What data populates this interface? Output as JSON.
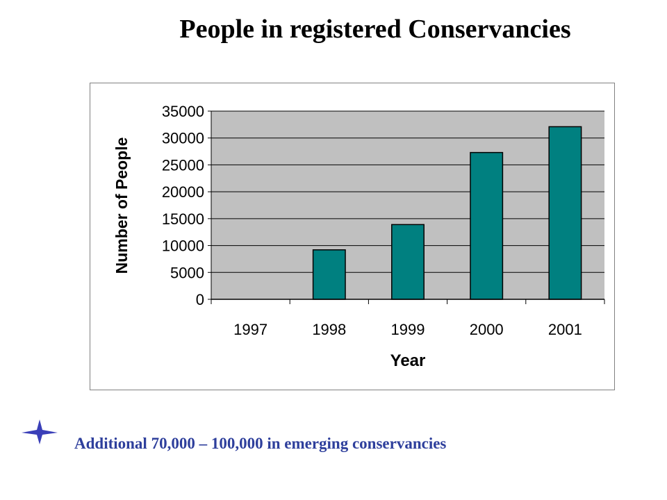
{
  "slide": {
    "title": "People in registered Conservancies",
    "footer_note": "Additional 70,000 – 100,000 in emerging conservancies",
    "bullet_icon": "four-point-star-icon",
    "colors": {
      "bullet": "#3a3fb8",
      "footer_text": "#2e3f9c"
    }
  },
  "chart_data": {
    "type": "bar",
    "title": "",
    "xlabel": "Year",
    "ylabel": "Number of People",
    "categories": [
      "1997",
      "1998",
      "1999",
      "2000",
      "2001"
    ],
    "values": [
      0,
      9200,
      13900,
      27300,
      32100
    ],
    "ylim": [
      0,
      35000
    ],
    "yticks": [
      0,
      5000,
      10000,
      15000,
      20000,
      25000,
      30000,
      35000
    ],
    "grid": true,
    "legend": "none",
    "colors": {
      "bar": "#008080",
      "plot_background": "#c0c0c0",
      "gridline": "#000000"
    }
  }
}
